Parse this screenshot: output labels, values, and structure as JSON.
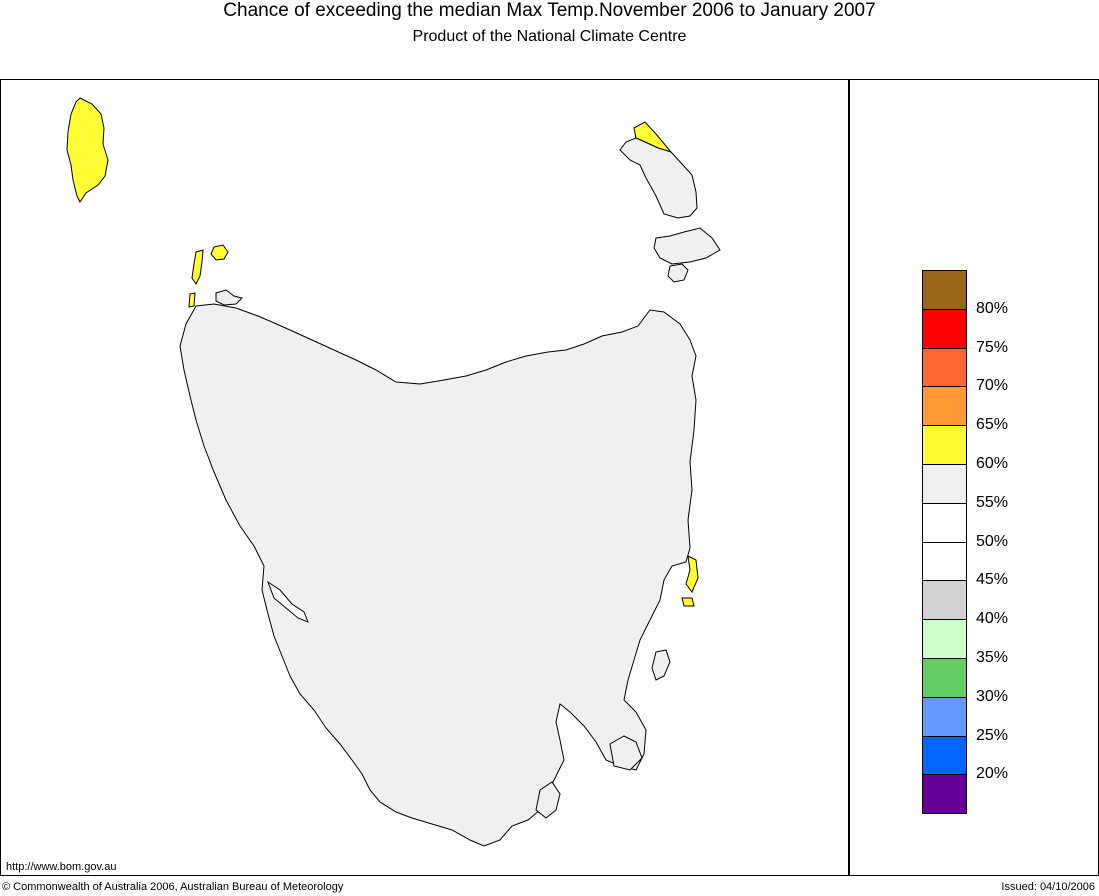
{
  "title": "Chance of exceeding the median Max Temp.November 2006 to January 2007",
  "subtitle": "Product of the National Climate Centre",
  "url": "http://www.bom.gov.au",
  "copyright": "© Commonwealth of Australia 2006, Australian Bureau of Meteorology",
  "issued": "Issued: 04/10/2006",
  "map": {
    "region": "Tasmania",
    "land_color": "#f0f0f0",
    "highlight_color": "#ffff33",
    "outline_color": "#000000"
  },
  "legend": {
    "classes": [
      {
        "color": "#996619",
        "label": "80%"
      },
      {
        "color": "#ff0000",
        "label": "75%"
      },
      {
        "color": "#ff6633",
        "label": "70%"
      },
      {
        "color": "#ff9933",
        "label": "65%"
      },
      {
        "color": "#ffff33",
        "label": "60%"
      },
      {
        "color": "#f0f0f0",
        "label": "55%"
      },
      {
        "color": "#ffffff",
        "label": "50%"
      },
      {
        "color": "#ffffff",
        "label": "45%"
      },
      {
        "color": "#d3d3d3",
        "label": "40%"
      },
      {
        "color": "#ccffcc",
        "label": "35%"
      },
      {
        "color": "#66cc66",
        "label": "30%"
      },
      {
        "color": "#6699ff",
        "label": "25%"
      },
      {
        "color": "#0066ff",
        "label": "20%"
      },
      {
        "color": "#660099",
        "label": ""
      }
    ]
  }
}
